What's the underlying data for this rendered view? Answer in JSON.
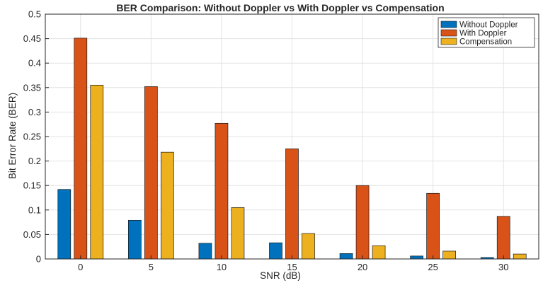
{
  "chart_data": {
    "type": "bar",
    "title": "BER Comparison: Without Doppler vs With Doppler vs Compensation",
    "xlabel": "SNR (dB)",
    "ylabel": "Bit Error Rate (BER)",
    "categories": [
      "0",
      "5",
      "10",
      "15",
      "20",
      "25",
      "30"
    ],
    "ylim": [
      0,
      0.5
    ],
    "yticks": [
      "0",
      "0.05",
      "0.1",
      "0.15",
      "0.2",
      "0.25",
      "0.3",
      "0.35",
      "0.4",
      "0.45",
      "0.5"
    ],
    "grid": true,
    "legend_position": "top-right",
    "series": [
      {
        "name": "Without Doppler",
        "color": "#0072BD",
        "values": [
          0.142,
          0.079,
          0.032,
          0.033,
          0.011,
          0.006,
          0.003
        ]
      },
      {
        "name": "With Doppler",
        "color": "#D95319",
        "values": [
          0.451,
          0.352,
          0.277,
          0.225,
          0.15,
          0.134,
          0.087
        ]
      },
      {
        "name": "Compensation",
        "color": "#EDB120",
        "values": [
          0.355,
          0.218,
          0.105,
          0.052,
          0.027,
          0.016,
          0.01
        ]
      }
    ]
  }
}
